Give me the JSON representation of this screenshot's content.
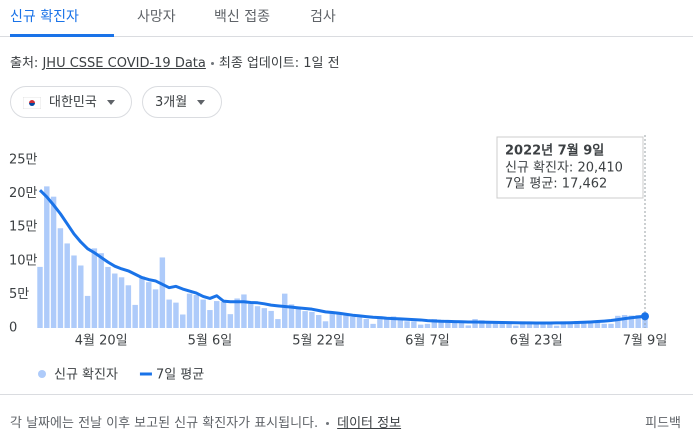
{
  "tabs": [
    "신규 확진자",
    "사망자",
    "백신 접종",
    "검사"
  ],
  "source": {
    "label": "출처:",
    "link": "JHU CSSE COVID-19 Data",
    "updated": "최종 업데이트: 1일 전"
  },
  "filters": [
    "대한민국",
    "3개월"
  ],
  "chart_data": {
    "type": "bar-line",
    "x": [
      "2022-04-11",
      "2022-04-12",
      "2022-04-13",
      "2022-04-14",
      "2022-04-15",
      "2022-04-16",
      "2022-04-17",
      "2022-04-18",
      "2022-04-19",
      "2022-04-20",
      "2022-04-21",
      "2022-04-22",
      "2022-04-23",
      "2022-04-24",
      "2022-04-25",
      "2022-04-26",
      "2022-04-27",
      "2022-04-28",
      "2022-04-29",
      "2022-04-30",
      "2022-05-01",
      "2022-05-02",
      "2022-05-03",
      "2022-05-04",
      "2022-05-05",
      "2022-05-06",
      "2022-05-07",
      "2022-05-08",
      "2022-05-09",
      "2022-05-10",
      "2022-05-11",
      "2022-05-12",
      "2022-05-13",
      "2022-05-14",
      "2022-05-15",
      "2022-05-16",
      "2022-05-17",
      "2022-05-18",
      "2022-05-19",
      "2022-05-20",
      "2022-05-21",
      "2022-05-22",
      "2022-05-23",
      "2022-05-24",
      "2022-05-25",
      "2022-05-26",
      "2022-05-27",
      "2022-05-28",
      "2022-05-29",
      "2022-05-30",
      "2022-05-31",
      "2022-06-01",
      "2022-06-02",
      "2022-06-03",
      "2022-06-04",
      "2022-06-05",
      "2022-06-06",
      "2022-06-07",
      "2022-06-08",
      "2022-06-09",
      "2022-06-10",
      "2022-06-11",
      "2022-06-12",
      "2022-06-13",
      "2022-06-14",
      "2022-06-15",
      "2022-06-16",
      "2022-06-17",
      "2022-06-18",
      "2022-06-19",
      "2022-06-20",
      "2022-06-21",
      "2022-06-22",
      "2022-06-23",
      "2022-06-24",
      "2022-06-25",
      "2022-06-26",
      "2022-06-27",
      "2022-06-28",
      "2022-06-29",
      "2022-06-30",
      "2022-07-01",
      "2022-07-02",
      "2022-07-03",
      "2022-07-04",
      "2022-07-05",
      "2022-07-06",
      "2022-07-07",
      "2022-07-08",
      "2022-07-09"
    ],
    "series": [
      {
        "name": "신규 확진자",
        "color": "#aecbfa",
        "values": [
          90928,
          210755,
          195419,
          148443,
          125846,
          107916,
          93001,
          47743,
          118504,
          111319,
          90867,
          81058,
          75449,
          63550,
          34370,
          76787,
          68213,
          57464,
          105000,
          42296,
          37771,
          20084,
          51131,
          49064,
          42296,
          26714,
          40064,
          38681,
          20601,
          43925,
          49933,
          35906,
          32451,
          29581,
          25434,
          13296,
          51130,
          35129,
          29935,
          25125,
          23956,
          19298,
          9975,
          23945,
          22248,
          18811,
          16584,
          15797,
          13358,
          6141,
          16542,
          13528,
          17189,
          12542,
          10060,
          9828,
          5022,
          6171,
          13358,
          12155,
          9313,
          8438,
          7380,
          3828,
          13296,
          11500,
          9437,
          7995,
          7198,
          6068,
          3530,
          9906,
          9591,
          7497,
          7224,
          6239,
          3423,
          9885,
          8963,
          10463,
          9528,
          10715,
          10059,
          6253,
          6254,
          18147,
          19371,
          18511,
          19323,
          20410
        ]
      },
      {
        "name": "7일 평균",
        "color": "#1a73e8",
        "values": [
          205000,
          195000,
          183000,
          170000,
          155000,
          140000,
          128000,
          118000,
          112000,
          105000,
          98000,
          92000,
          88000,
          85000,
          80000,
          75000,
          72000,
          70000,
          65000,
          60000,
          62000,
          58000,
          55000,
          52000,
          47000,
          44000,
          48000,
          40000,
          39000,
          39000,
          39000,
          38000,
          37500,
          36000,
          34000,
          33000,
          32000,
          31000,
          30000,
          29000,
          28000,
          26000,
          24000,
          23000,
          22000,
          20500,
          19000,
          18000,
          17000,
          16000,
          15500,
          14500,
          14000,
          13500,
          13000,
          12500,
          12000,
          11000,
          10500,
          10000,
          9800,
          9500,
          9300,
          9000,
          9000,
          8800,
          8600,
          8400,
          8200,
          8000,
          7800,
          7700,
          7600,
          7500,
          7500,
          7500,
          7600,
          7700,
          7900,
          8200,
          8600,
          9000,
          9600,
          10300,
          11200,
          12500,
          14000,
          15300,
          16400,
          17462
        ]
      }
    ],
    "xlim": [
      "2022-04-11",
      "2022-07-09"
    ],
    "xticks": [
      {
        "value": "2022-04-20",
        "label": "4월 20일"
      },
      {
        "value": "2022-05-06",
        "label": "5월 6일"
      },
      {
        "value": "2022-05-22",
        "label": "5월 22일"
      },
      {
        "value": "2022-06-07",
        "label": "6월 7일"
      },
      {
        "value": "2022-06-23",
        "label": "6월 23일"
      },
      {
        "value": "2022-07-09",
        "label": "7월 9일"
      }
    ],
    "ylim": [
      0,
      250000
    ],
    "yticks": [
      0,
      {
        "value": 50000,
        "label": "5만"
      },
      {
        "value": 100000,
        "label": "10만"
      },
      {
        "value": 150000,
        "label": "15만"
      },
      {
        "value": 200000,
        "label": "20만"
      },
      {
        "value": 250000,
        "label": "25만"
      }
    ],
    "grid": false,
    "tooltip": {
      "title": "2022년 7월 9일",
      "lines": [
        "신규 확진자: 20,410",
        "7일 평균: 17,462"
      ]
    }
  },
  "footer": {
    "note": "각 날짜에는 전날 이후 보고된 신규 확진자가 표시됩니다.",
    "link": "데이터 정보",
    "feedback": "피드백"
  }
}
